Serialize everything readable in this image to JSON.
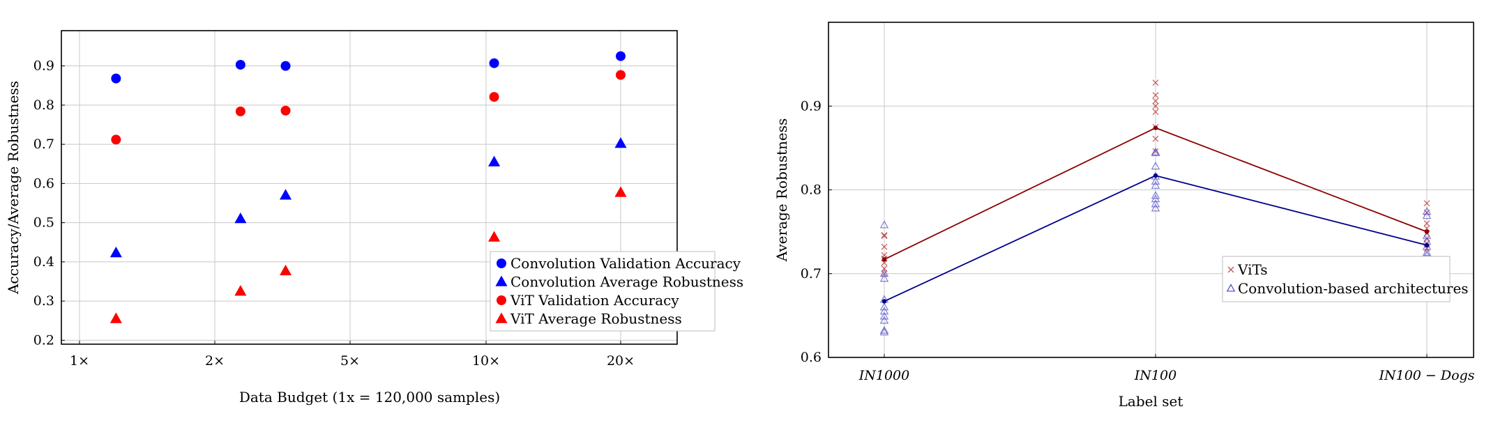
{
  "chart_data": [
    {
      "type": "scatter",
      "xlabel": "Data Budget (1x = 120,000 samples)",
      "ylabel": "Accuracy/Average Robustness",
      "x_ticks": [
        "1×",
        "2×",
        "5×",
        "10×",
        "20×"
      ],
      "ylim": [
        0.19,
        0.99
      ],
      "y_ticks": [
        0.2,
        0.3,
        0.4,
        0.5,
        0.6,
        0.7,
        0.8,
        0.9
      ],
      "grid": true,
      "legend_position": "bottom-right",
      "series": [
        {
          "name": "Convolution Validation Accuracy",
          "marker": "circle",
          "color": "#0000ff",
          "x": [
            1.27,
            2.57,
            3.57,
            10.6,
            20.3
          ],
          "y": [
            0.868,
            0.903,
            0.9,
            0.907,
            0.925
          ]
        },
        {
          "name": "Convolution Average Robustness",
          "marker": "triangle",
          "color": "#0000ff",
          "x": [
            1.27,
            2.57,
            3.57,
            10.6,
            20.3
          ],
          "y": [
            0.423,
            0.51,
            0.57,
            0.655,
            0.702
          ]
        },
        {
          "name": "ViT Validation Accuracy",
          "marker": "circle",
          "color": "#ff0000",
          "x": [
            1.27,
            2.57,
            3.57,
            10.6,
            20.3
          ],
          "y": [
            0.712,
            0.784,
            0.786,
            0.821,
            0.877
          ]
        },
        {
          "name": "ViT Average Robustness",
          "marker": "triangle",
          "color": "#ff0000",
          "x": [
            1.27,
            2.57,
            3.57,
            10.6,
            20.3
          ],
          "y": [
            0.255,
            0.325,
            0.377,
            0.463,
            0.577
          ]
        }
      ]
    },
    {
      "type": "line",
      "xlabel": "Label set",
      "ylabel": "Average Robustness",
      "categories": [
        "IN1000",
        "IN100",
        "IN100 − Dogs"
      ],
      "ylim": [
        0.6,
        1.0
      ],
      "y_ticks": [
        0.6,
        0.7,
        0.8,
        0.9
      ],
      "grid": true,
      "legend_position": "right",
      "series": [
        {
          "name": "ViTs",
          "marker": "x",
          "color": "#b22222",
          "line_color": "#8b0000",
          "values": [
            0.717,
            0.874,
            0.75
          ],
          "points": [
            [
              0.746,
              0.732,
              0.722,
              0.718,
              0.713,
              0.706,
              0.7,
              0.745
            ],
            [
              0.928,
              0.913,
              0.906,
              0.9,
              0.893,
              0.861,
              0.846,
              0.875
            ],
            [
              0.784,
              0.773,
              0.76,
              0.754,
              0.748,
              0.742,
              0.736,
              0.73
            ]
          ]
        },
        {
          "name": "Convolution-based architectures",
          "marker": "triangle",
          "color": "#5555cc",
          "line_color": "#00008b",
          "values": [
            0.667,
            0.817,
            0.734
          ],
          "points": [
            [
              0.758,
              0.7,
              0.694,
              0.669,
              0.66,
              0.655,
              0.649,
              0.644,
              0.632,
              0.63
            ],
            [
              0.845,
              0.844,
              0.828,
              0.816,
              0.81,
              0.805,
              0.793,
              0.789,
              0.783,
              0.778
            ],
            [
              0.774,
              0.769,
              0.745,
              0.738,
              0.732,
              0.725,
              0.722,
              0.708
            ]
          ]
        }
      ]
    }
  ]
}
